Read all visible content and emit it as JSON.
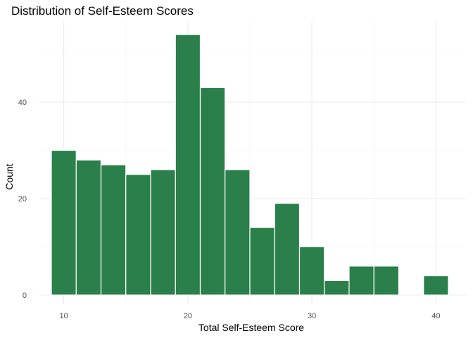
{
  "chart_data": {
    "type": "bar",
    "title": "Distribution of Self-Esteem Scores",
    "xlabel": "Total Self-Esteem Score",
    "ylabel": "Count",
    "bar_color": "#2a7f4a",
    "bin_width": 2,
    "xlim": [
      9,
      41
    ],
    "ylim": [
      0,
      56
    ],
    "x_ticks": [
      10,
      20,
      30,
      40
    ],
    "y_ticks": [
      0,
      20,
      40
    ],
    "grid": true,
    "bins": [
      {
        "start": 9,
        "end": 11,
        "count": 30
      },
      {
        "start": 11,
        "end": 13,
        "count": 28
      },
      {
        "start": 13,
        "end": 15,
        "count": 27
      },
      {
        "start": 15,
        "end": 17,
        "count": 25
      },
      {
        "start": 17,
        "end": 19,
        "count": 26
      },
      {
        "start": 19,
        "end": 21,
        "count": 54
      },
      {
        "start": 21,
        "end": 23,
        "count": 43
      },
      {
        "start": 23,
        "end": 25,
        "count": 26
      },
      {
        "start": 25,
        "end": 27,
        "count": 14
      },
      {
        "start": 27,
        "end": 29,
        "count": 19
      },
      {
        "start": 29,
        "end": 31,
        "count": 10
      },
      {
        "start": 31,
        "end": 33,
        "count": 3
      },
      {
        "start": 33,
        "end": 35,
        "count": 6
      },
      {
        "start": 35,
        "end": 37,
        "count": 6
      },
      {
        "start": 37,
        "end": 39,
        "count": 0
      },
      {
        "start": 39,
        "end": 41,
        "count": 4
      }
    ]
  }
}
